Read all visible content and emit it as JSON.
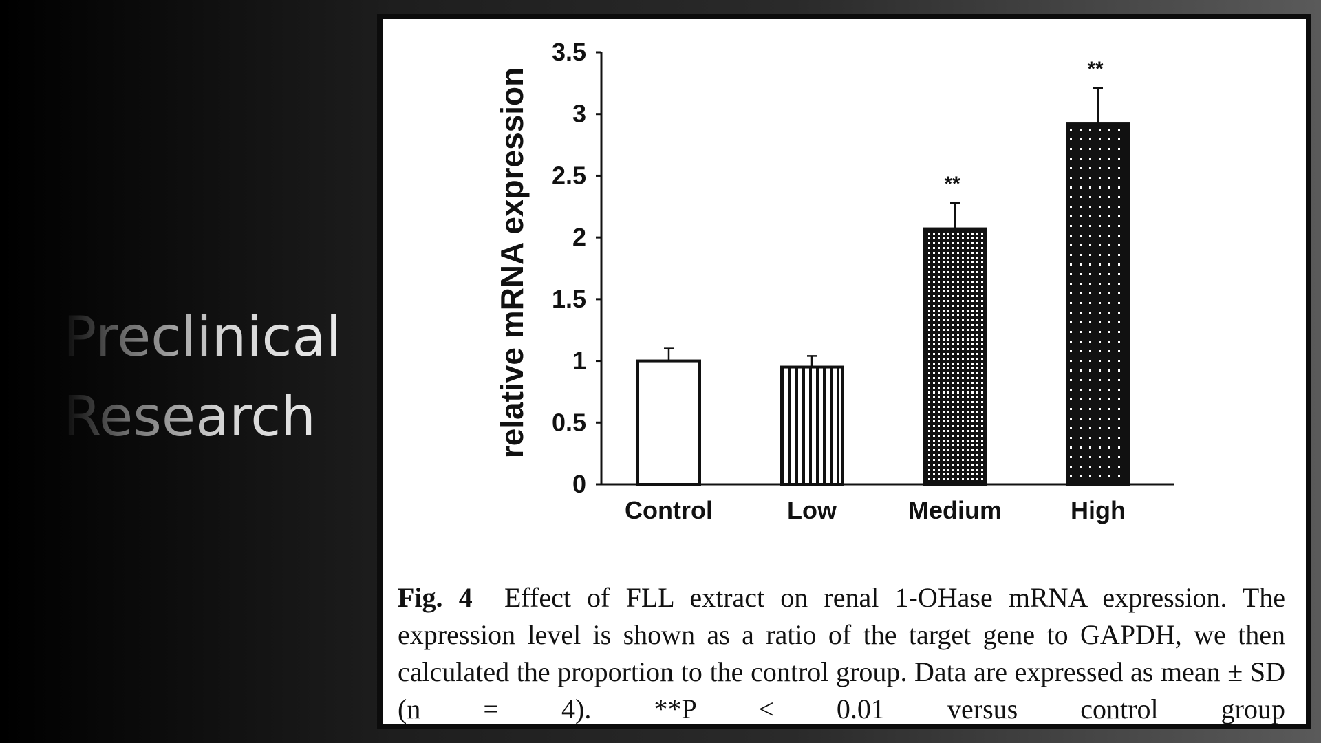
{
  "slide": {
    "title_lines": [
      "Preclinical",
      "Research"
    ]
  },
  "figure": {
    "caption_label": "Fig. 4",
    "caption_lines": [
      "Effect of FLL extract on renal 1-OHase mRNA expression.",
      "The expression level is shown as a ratio of the target gene to GAPDH,",
      "we then calculated the proportion to the control group. Data are",
      "expressed as mean ± SD (n = 4). **P < 0.01 versus control group"
    ]
  },
  "chart_data": {
    "type": "bar",
    "title": "",
    "xlabel": "",
    "ylabel": "relative mRNA expression",
    "categories": [
      "Control",
      "Low",
      "Medium",
      "High"
    ],
    "values": [
      1.0,
      0.95,
      2.07,
      2.92
    ],
    "errors": [
      0.1,
      0.09,
      0.21,
      0.29
    ],
    "significance": [
      "",
      "",
      "**",
      "**"
    ],
    "patterns": [
      "none",
      "vertical-lines",
      "fine-dots",
      "coarse-dots"
    ],
    "ylim": [
      0,
      3.5
    ],
    "yticks": [
      "0",
      "0.5",
      "1",
      "1.5",
      "2",
      "2.5",
      "3",
      "3.5"
    ],
    "grid": false,
    "legend": "none"
  }
}
